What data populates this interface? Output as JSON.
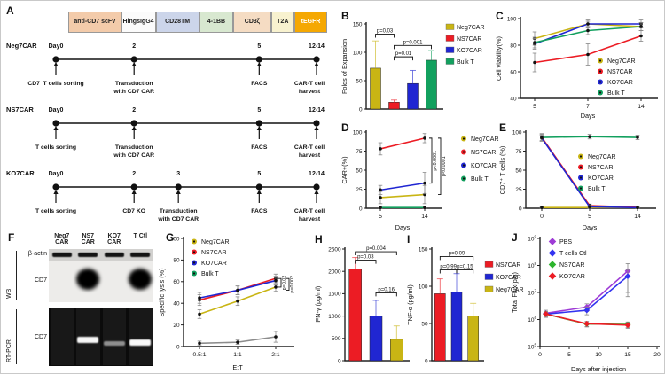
{
  "panels": {
    "A": "A",
    "B": "B",
    "C": "C",
    "D": "D",
    "E": "E",
    "F": "F",
    "G": "G",
    "H": "H",
    "I": "I",
    "J": "J"
  },
  "panelA": {
    "construct": [
      {
        "label": "anti-CD7 scFv",
        "color": "#f3cbaa",
        "flex": 64,
        "text": "#222"
      },
      {
        "label": "Hing sIgG4",
        "lines": [
          "Hing",
          "sIgG4"
        ],
        "color": "#fbfbfb",
        "flex": 30,
        "text": "#222"
      },
      {
        "label": "CD28TM",
        "color": "#ccd5ea",
        "flex": 52,
        "text": "#222"
      },
      {
        "label": "4-1BB",
        "color": "#d8e8d0",
        "flex": 40,
        "text": "#222"
      },
      {
        "label": "CD3ζ",
        "color": "#f5dcc3",
        "flex": 44,
        "text": "#222"
      },
      {
        "label": "T2A",
        "color": "#f8f2cf",
        "flex": 26,
        "text": "#222"
      },
      {
        "label": "tEGFR",
        "color": "#f5a802",
        "flex": 38,
        "text": "#ffffff"
      }
    ],
    "timelines": [
      {
        "name": "Neg7CAR",
        "points": [
          {
            "day": "Day0",
            "frac": 0,
            "event": [
              "CD7⁻T cells sorting"
            ]
          },
          {
            "day": "2",
            "frac": 0.3,
            "event": [
              "Transduction",
              "with CD7 CAR"
            ]
          },
          {
            "day": "5",
            "frac": 0.78,
            "event": [
              "FACS"
            ]
          },
          {
            "day": "12-14",
            "frac": 1,
            "event": [
              "CAR-T cell",
              "harvest"
            ]
          }
        ]
      },
      {
        "name": "NS7CAR",
        "points": [
          {
            "day": "Day0",
            "frac": 0,
            "event": [
              "T cells sorting"
            ]
          },
          {
            "day": "2",
            "frac": 0.3,
            "event": [
              "Transduction",
              "with CD7 CAR"
            ]
          },
          {
            "day": "5",
            "frac": 0.78,
            "event": [
              "FACS"
            ]
          },
          {
            "day": "12-14",
            "frac": 1,
            "event": [
              "CAR-T cell",
              "harvest"
            ]
          }
        ]
      },
      {
        "name": "KO7CAR",
        "points": [
          {
            "day": "Day0",
            "frac": 0,
            "event": [
              "T cells sorting"
            ]
          },
          {
            "day": "2",
            "frac": 0.3,
            "event": [
              "CD7 KO"
            ]
          },
          {
            "day": "3",
            "frac": 0.47,
            "event": [
              "Transduction",
              "with CD7 CAR"
            ]
          },
          {
            "day": "5",
            "frac": 0.78,
            "event": [
              "FACS"
            ]
          },
          {
            "day": "12-14",
            "frac": 1,
            "event": [
              "CAR-T cell",
              "harvest"
            ]
          }
        ]
      }
    ]
  },
  "panelF": {
    "lanes": [
      [
        "Neg7",
        "CAR"
      ],
      [
        "NS7",
        "CAR"
      ],
      [
        "KO7",
        "CAR"
      ],
      [
        "T Ctl"
      ]
    ],
    "section_labels": [
      "WB",
      "RT-PCR"
    ],
    "rows": [
      {
        "name": "β-actin",
        "type": "wb-strip",
        "bands": [
          1,
          1,
          1,
          1
        ]
      },
      {
        "name": "CD7",
        "type": "wb-blob",
        "bands": [
          0,
          1,
          0,
          1
        ]
      },
      {
        "name": "CD7",
        "type": "gel",
        "bands": [
          0,
          1,
          0.45,
          1
        ]
      }
    ]
  },
  "chart_data": [
    {
      "panel": "B",
      "type": "bar",
      "title": "",
      "ylabel": "Folds of Expansion",
      "ylim": [
        0,
        150
      ],
      "yticks": [
        0,
        50,
        100,
        150
      ],
      "categories": [
        "Neg7CAR",
        "NS7CAR",
        "KO7CAR",
        "Bulk T"
      ],
      "values": [
        72,
        12,
        45,
        86
      ],
      "errors": [
        48,
        4,
        23,
        17
      ],
      "colors": [
        "#c9b514",
        "#ec1c24",
        "#2026d2",
        "#12a05e"
      ],
      "legend": [
        "Neg7CAR",
        "NS7CAR",
        "KO7CAR",
        "Bulk T"
      ],
      "brackets": [
        {
          "i1": 0,
          "i2": 1,
          "y": 132,
          "label": "p=0.03"
        },
        {
          "i1": 1,
          "i2": 3,
          "y": 112,
          "label": "p=0.001"
        },
        {
          "i1": 1,
          "i2": 2,
          "y": 92,
          "label": "p=0.01"
        }
      ]
    },
    {
      "panel": "C",
      "type": "line",
      "title": "",
      "ylabel": "Cell viability(%)",
      "xlabel": "Days",
      "ylim": [
        40,
        100
      ],
      "yticks": [
        40,
        60,
        80,
        100
      ],
      "x": [
        "5",
        "7",
        "14"
      ],
      "series": [
        {
          "name": "Neg7CAR",
          "color": "#c9b514",
          "values": [
            85,
            96,
            94
          ],
          "errors": [
            5,
            3,
            3
          ]
        },
        {
          "name": "NS7CAR",
          "color": "#ec1c24",
          "values": [
            67,
            73,
            87
          ],
          "errors": [
            7,
            8,
            4
          ]
        },
        {
          "name": "KO7CAR",
          "color": "#2026d2",
          "values": [
            81,
            96,
            96
          ],
          "errors": [
            4,
            2,
            3
          ]
        },
        {
          "name": "Bulk T",
          "color": "#12a05e",
          "values": [
            82,
            91,
            94
          ],
          "errors": [
            4,
            3,
            3
          ]
        }
      ]
    },
    {
      "panel": "D",
      "type": "line",
      "title": "",
      "ylabel": "CAR+(%)",
      "xlabel": "Days",
      "ylim": [
        0,
        100
      ],
      "yticks": [
        0,
        25,
        50,
        75,
        100
      ],
      "x": [
        "5",
        "14"
      ],
      "series": [
        {
          "name": "Neg7CAR",
          "color": "#c9b514",
          "values": [
            14,
            18
          ],
          "errors": [
            8,
            12
          ]
        },
        {
          "name": "NS7CAR",
          "color": "#ec1c24",
          "values": [
            78,
            92
          ],
          "errors": [
            8,
            6
          ]
        },
        {
          "name": "KO7CAR",
          "color": "#2026d2",
          "values": [
            24,
            33
          ],
          "errors": [
            6,
            14
          ]
        },
        {
          "name": "Bulk T",
          "color": "#12a05e",
          "values": [
            1,
            1
          ],
          "errors": [
            2,
            2
          ]
        }
      ],
      "vbrackets": [
        {
          "y1": 33,
          "y2": 92,
          "label": "p<0.0001"
        },
        {
          "y1": 18,
          "y2": 92,
          "label": "p<0.0001"
        }
      ]
    },
    {
      "panel": "E",
      "type": "line",
      "title": "",
      "ylabel": "CD7⁺ T cells (%)",
      "xlabel": "Days",
      "ylim": [
        0,
        100
      ],
      "yticks": [
        0,
        25,
        50,
        75,
        100
      ],
      "x": [
        "0",
        "5",
        "14"
      ],
      "series": [
        {
          "name": "Neg7CAR",
          "color": "#c9b514",
          "values": [
            1,
            1,
            1
          ],
          "errors": [
            1,
            1,
            1
          ]
        },
        {
          "name": "NS7CAR",
          "color": "#ec1c24",
          "values": [
            93,
            3.5,
            1.4
          ],
          "errors": [
            4,
            2,
            1
          ]
        },
        {
          "name": "KO7CAR",
          "color": "#2026d2",
          "values": [
            92,
            2,
            0.8
          ],
          "errors": [
            4,
            2,
            1
          ]
        },
        {
          "name": "Bulk T",
          "color": "#12a05e",
          "values": [
            93,
            94,
            93
          ],
          "errors": [
            5,
            3,
            3
          ]
        }
      ]
    },
    {
      "panel": "G",
      "type": "line",
      "title": "",
      "ylabel": "Specific lysis (%)",
      "xlabel": "E:T",
      "ylim": [
        0,
        100
      ],
      "yticks": [
        0,
        20,
        40,
        60,
        80,
        100
      ],
      "x": [
        "0.5:1",
        "1:1",
        "2:1"
      ],
      "series": [
        {
          "name": "Neg7CAR",
          "color": "#c9b514",
          "values": [
            30,
            42,
            55
          ],
          "errors": [
            4,
            4,
            4
          ]
        },
        {
          "name": "NS7CAR",
          "color": "#ec1c24",
          "values": [
            43,
            52,
            63
          ],
          "errors": [
            5,
            4,
            4
          ]
        },
        {
          "name": "KO7CAR",
          "color": "#2026d2",
          "values": [
            45,
            52,
            61
          ],
          "errors": [
            5,
            4,
            4
          ]
        },
        {
          "name": "Bulk T",
          "color": "#8c8c8c",
          "marker": "#12a05e",
          "values": [
            3,
            4,
            9
          ],
          "errors": [
            2,
            2,
            5
          ]
        }
      ],
      "vbrackets": [
        {
          "y1": 55,
          "y2": 63,
          "label": "p=0.02"
        },
        {
          "y1": 52,
          "y2": 63,
          "label": "p=0.002"
        }
      ]
    },
    {
      "panel": "H",
      "type": "bar",
      "title": "",
      "ylabel": "IFN-γ (pg/ml)",
      "ylim": [
        0,
        2500
      ],
      "yticks": [
        0,
        500,
        1000,
        1500,
        2000,
        2500
      ],
      "categories": [
        "NS7CAR",
        "KO7CAR",
        "Neg7CAR"
      ],
      "values": [
        2050,
        1000,
        480
      ],
      "errors": [
        260,
        350,
        300
      ],
      "colors": [
        "#ec1c24",
        "#2026d2",
        "#c9b514"
      ],
      "brackets": [
        {
          "i1": 0,
          "i2": 2,
          "y": 2440,
          "label": "p=0.004"
        },
        {
          "i1": 0,
          "i2": 1,
          "y": 2250,
          "label": "p=0.03"
        },
        {
          "i1": 1,
          "i2": 2,
          "y": 1520,
          "label": "p=0.16"
        }
      ]
    },
    {
      "panel": "I",
      "type": "bar",
      "title": "",
      "ylabel": "TNF-α (pg/ml)",
      "ylim": [
        0,
        150
      ],
      "yticks": [
        0,
        50,
        100,
        150
      ],
      "categories": [
        "NS7CAR",
        "KO7CAR",
        "Neg7CAR"
      ],
      "values": [
        90,
        92,
        60
      ],
      "errors": [
        20,
        25,
        17
      ],
      "colors": [
        "#ec1c24",
        "#2026d2",
        "#c9b514"
      ],
      "legend": [
        "NS7CAR",
        "KO7CAR",
        "Neg7CAR"
      ],
      "brackets": [
        {
          "i1": 0,
          "i2": 2,
          "y": 140,
          "label": "p=0.09"
        },
        {
          "i1": 0,
          "i2": 1,
          "y": 122,
          "label": "p=0.99"
        },
        {
          "i1": 1,
          "i2": 2,
          "y": 122,
          "label": "p=0.15"
        }
      ]
    },
    {
      "panel": "J",
      "type": "line",
      "title": "",
      "ylabel": "Total Flux(p/s)",
      "xlabel": "Days after injection",
      "log": true,
      "ylim": [
        100000,
        1000000000
      ],
      "xlim": [
        0,
        20
      ],
      "xticks": [
        0,
        5,
        10,
        15,
        20
      ],
      "xnum": [
        1,
        8,
        15
      ],
      "series": [
        {
          "name": "PBS",
          "color": "#9e3bd6",
          "values": [
            1700000,
            2900000,
            62000000
          ],
          "errors": [
            500000,
            900000,
            55000000
          ]
        },
        {
          "name": "T cells Ctl",
          "color": "#3333f0",
          "values": [
            1600000,
            2200000,
            40000000
          ],
          "errors": [
            400000,
            700000,
            30000000
          ]
        },
        {
          "name": "NS7CAR",
          "color": "#2db52d",
          "values": [
            1600000,
            680000,
            660000
          ],
          "errors": [
            300000,
            150000,
            150000
          ]
        },
        {
          "name": "KO7CAR",
          "color": "#ec1c24",
          "values": [
            1600000,
            700000,
            620000
          ],
          "errors": [
            300000,
            150000,
            150000
          ]
        }
      ]
    }
  ]
}
